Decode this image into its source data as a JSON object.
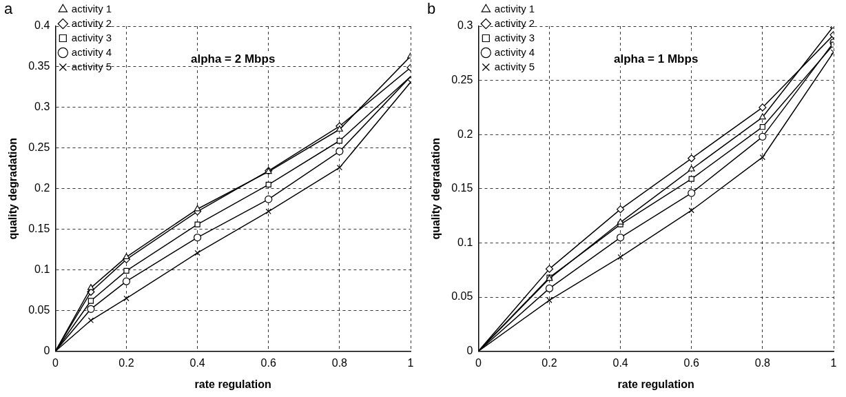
{
  "chart_data": [
    {
      "type": "line",
      "title": "alpha = 2 Mbps",
      "annotations": [
        "a"
      ],
      "xlabel": "rate regulation",
      "ylabel": "quality degradation",
      "x": [
        0,
        0.1,
        0.2,
        0.4,
        0.6,
        0.8,
        1
      ],
      "xlim": [
        0,
        1
      ],
      "xticks": [
        0,
        0.2,
        0.4,
        0.6,
        0.8,
        1
      ],
      "ylim": [
        0,
        0.4
      ],
      "yticks": [
        0,
        0.05,
        0.1,
        0.15,
        0.2,
        0.25,
        0.3,
        0.35,
        0.4
      ],
      "grid": true,
      "legend": "top left",
      "line_style": "solid",
      "series": [
        {
          "name": "activity 1",
          "color": "#000000",
          "marker": "triangle",
          "values": [
            0,
            0.078,
            0.116,
            0.175,
            0.221,
            0.273,
            0.363
          ]
        },
        {
          "name": "activity 2",
          "color": "#000000",
          "marker": "diamond",
          "values": [
            0,
            0.073,
            0.113,
            0.172,
            0.222,
            0.277,
            0.349
          ]
        },
        {
          "name": "activity 3",
          "color": "#000000",
          "marker": "square",
          "values": [
            0,
            0.062,
            0.099,
            0.156,
            0.205,
            0.259,
            0.338
          ]
        },
        {
          "name": "activity 4",
          "color": "#000000",
          "marker": "circle",
          "values": [
            0,
            0.052,
            0.086,
            0.14,
            0.187,
            0.246,
            0.338
          ]
        },
        {
          "name": "activity 5",
          "color": "#000000",
          "marker": "cross",
          "values": [
            0,
            0.038,
            0.065,
            0.121,
            0.172,
            0.226,
            0.331
          ]
        }
      ]
    },
    {
      "type": "line",
      "title": "alpha = 1 Mbps",
      "annotations": [
        "b"
      ],
      "xlabel": "rate regulation",
      "ylabel": "quality degradation",
      "x": [
        0,
        0.2,
        0.4,
        0.6,
        0.8,
        1
      ],
      "xlim": [
        0,
        1
      ],
      "xticks": [
        0,
        0.2,
        0.4,
        0.6,
        0.8,
        1
      ],
      "ylim": [
        0,
        0.3
      ],
      "yticks": [
        0,
        0.05,
        0.1,
        0.15,
        0.2,
        0.25,
        0.3
      ],
      "grid": true,
      "legend": "top left",
      "line_style": "solid",
      "series": [
        {
          "name": "activity 1",
          "color": "#000000",
          "marker": "triangle",
          "values": [
            0,
            0.067,
            0.119,
            0.168,
            0.216,
            0.3
          ]
        },
        {
          "name": "activity 2",
          "color": "#000000",
          "marker": "diamond",
          "values": [
            0,
            0.076,
            0.131,
            0.178,
            0.225,
            0.292
          ]
        },
        {
          "name": "activity 3",
          "color": "#000000",
          "marker": "square",
          "values": [
            0,
            0.068,
            0.117,
            0.159,
            0.207,
            0.283
          ]
        },
        {
          "name": "activity 4",
          "color": "#000000",
          "marker": "circle",
          "values": [
            0,
            0.058,
            0.105,
            0.146,
            0.198,
            0.285
          ]
        },
        {
          "name": "activity 5",
          "color": "#000000",
          "marker": "cross",
          "values": [
            0,
            0.047,
            0.087,
            0.13,
            0.179,
            0.276
          ]
        }
      ]
    }
  ]
}
